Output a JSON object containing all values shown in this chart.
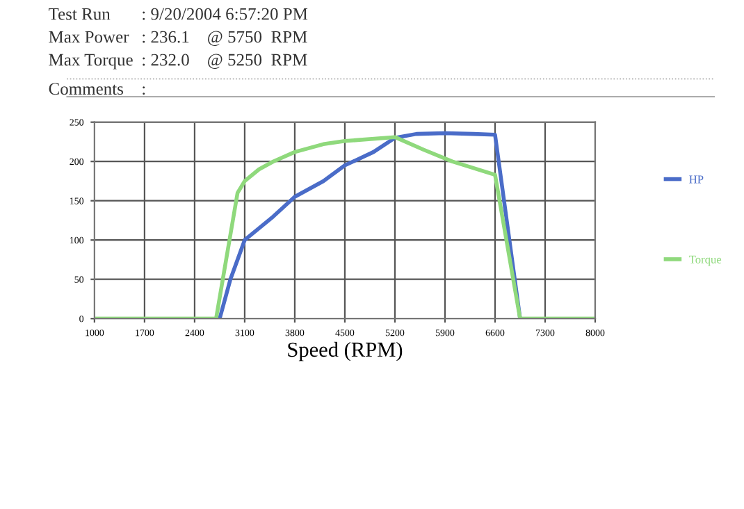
{
  "chart_data": {
    "type": "line",
    "xlabel": "Speed (RPM)",
    "annotations": [
      "Test Run",
      ": 9/20/2004 6:57:20 PM",
      "Max Power",
      ": 236.1    @ 5750  RPM",
      "Max Torque",
      ": 232.0    @ 5250  RPM",
      "Comments",
      ":"
    ],
    "xlim": [
      1000,
      8000
    ],
    "xticks": [
      1000,
      1700,
      2400,
      3100,
      3800,
      4500,
      5200,
      5900,
      6600,
      7300,
      8000
    ],
    "ylim": [
      0,
      250
    ],
    "yticks": [
      0,
      50,
      100,
      150,
      200,
      250
    ],
    "grid": true,
    "legend": "right",
    "marker": "none",
    "line_style": "solid",
    "series": [
      {
        "name": "HP",
        "color": "#4a6cc8",
        "x": [
          2750,
          2900,
          3100,
          3500,
          3800,
          4200,
          4500,
          4900,
          5200,
          5500,
          5900,
          6300,
          6600,
          6950
        ],
        "values": [
          0,
          50,
          100,
          130,
          155,
          175,
          195,
          212,
          230,
          235,
          236,
          235,
          234,
          0
        ]
      },
      {
        "name": "Torque",
        "color": "#8fd97c",
        "x": [
          1000,
          2700,
          2850,
          3000,
          3100,
          3300,
          3500,
          3800,
          4200,
          4500,
          5200,
          5600,
          6000,
          6600,
          6950,
          8000
        ],
        "values": [
          0,
          0,
          80,
          160,
          175,
          190,
          200,
          212,
          222,
          226,
          231,
          215,
          200,
          183,
          0,
          0
        ]
      }
    ]
  }
}
